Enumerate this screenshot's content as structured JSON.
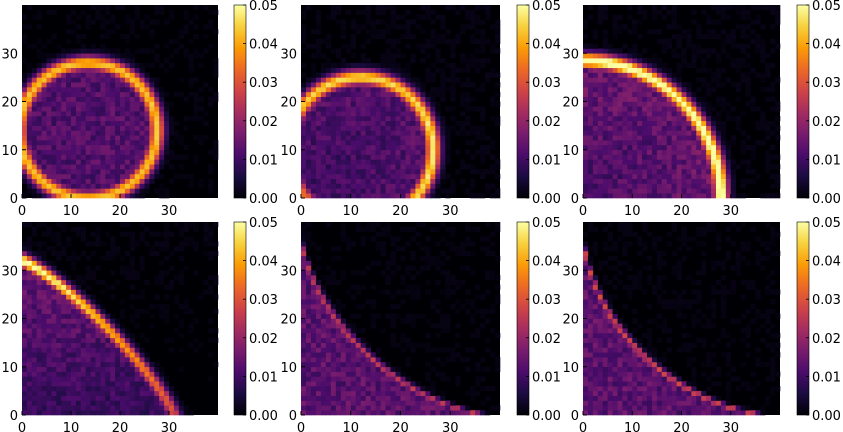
{
  "figure": {
    "background": "#ffffff",
    "colormap": "magma",
    "colormap_stops": [
      "#000004",
      "#1b0c41",
      "#4a0c6b",
      "#781c6d",
      "#a52c60",
      "#cf4446",
      "#ed6925",
      "#fb9b06",
      "#f7d13d",
      "#fcffa4"
    ]
  },
  "chart_data": [
    {
      "type": "heatmap",
      "panel": "top-left",
      "shape": "full-circle",
      "x_ticks": [
        "0",
        "10",
        "20",
        "30"
      ],
      "y_ticks": [
        "0",
        "10",
        "20",
        "30"
      ],
      "xlim": [
        0,
        40
      ],
      "ylim": [
        0,
        40
      ],
      "colorbar": {
        "ticks": [
          "0.00",
          "0.01",
          "0.02",
          "0.03",
          "0.04",
          "0.05"
        ],
        "range": [
          0,
          0.05
        ]
      },
      "curve": {
        "center": [
          13.5,
          14
        ],
        "radius": [
          14,
          14
        ],
        "peak": 0.043,
        "interior": 0.012
      }
    },
    {
      "type": "heatmap",
      "panel": "top-middle",
      "shape": "circle-cut-left-bottom",
      "x_ticks": [
        "0",
        "10",
        "20",
        "30"
      ],
      "y_ticks": [
        "0",
        "10",
        "20",
        "30"
      ],
      "xlim": [
        0,
        40
      ],
      "ylim": [
        0,
        40
      ],
      "colorbar": {
        "ticks": [
          "0.00",
          "0.01",
          "0.02",
          "0.03",
          "0.04",
          "0.05"
        ],
        "range": [
          0,
          0.05
        ]
      },
      "curve": {
        "center": [
          12,
          10
        ],
        "radius": [
          14.5,
          15
        ],
        "peak": 0.044,
        "interior": 0.012
      }
    },
    {
      "type": "heatmap",
      "panel": "top-right",
      "shape": "quarter-circle",
      "x_ticks": [
        "0",
        "10",
        "20",
        "30"
      ],
      "y_ticks": [
        "0",
        "10",
        "20",
        "30"
      ],
      "xlim": [
        0,
        40
      ],
      "ylim": [
        0,
        40
      ],
      "colorbar": {
        "ticks": [
          "0.00",
          "0.01",
          "0.02",
          "0.03",
          "0.04",
          "0.05"
        ],
        "range": [
          0,
          0.05
        ]
      },
      "curve": {
        "center": [
          0,
          0
        ],
        "radius": [
          28,
          28.5
        ],
        "peak": 0.05,
        "interior": 0.014
      }
    },
    {
      "type": "heatmap",
      "panel": "bottom-left",
      "shape": "quarter-ellipse",
      "x_ticks": [
        "0",
        "10",
        "20",
        "30"
      ],
      "y_ticks": [
        "0",
        "10",
        "20",
        "30"
      ],
      "xlim": [
        0,
        40
      ],
      "ylim": [
        0,
        40
      ],
      "colorbar": {
        "ticks": [
          "0.00",
          "0.01",
          "0.02",
          "0.03",
          "0.04",
          "0.05"
        ],
        "range": [
          0,
          0.05
        ]
      },
      "curve": {
        "center": [
          0,
          0
        ],
        "radius": [
          31,
          32
        ],
        "exponent": 1.2,
        "peak": 0.048,
        "interior": 0.014
      }
    },
    {
      "type": "heatmap",
      "panel": "bottom-middle",
      "shape": "concave-curve",
      "x_ticks": [
        "0",
        "10",
        "20",
        "30"
      ],
      "y_ticks": [
        "0",
        "10",
        "20",
        "30"
      ],
      "xlim": [
        0,
        40
      ],
      "ylim": [
        0,
        40
      ],
      "colorbar": {
        "ticks": [
          "0.00",
          "0.01",
          "0.02",
          "0.03",
          "0.04",
          "0.05"
        ],
        "range": [
          0,
          0.05
        ]
      },
      "curve": {
        "center": [
          0,
          0
        ],
        "radius": [
          38,
          37
        ],
        "exponent": 0.65,
        "peak": 0.025,
        "interior": 0.013
      }
    },
    {
      "type": "heatmap",
      "panel": "bottom-right",
      "shape": "concave-curve",
      "x_ticks": [
        "0",
        "10",
        "20",
        "30"
      ],
      "y_ticks": [
        "0",
        "10",
        "20",
        "30"
      ],
      "xlim": [
        0,
        40
      ],
      "ylim": [
        0,
        40
      ],
      "colorbar": {
        "ticks": [
          "0.00",
          "0.01",
          "0.02",
          "0.03",
          "0.04",
          "0.05"
        ],
        "range": [
          0,
          0.05
        ]
      },
      "curve": {
        "center": [
          0,
          0
        ],
        "radius": [
          38,
          37
        ],
        "exponent": 0.62,
        "peak": 0.028,
        "interior": 0.013
      }
    }
  ]
}
